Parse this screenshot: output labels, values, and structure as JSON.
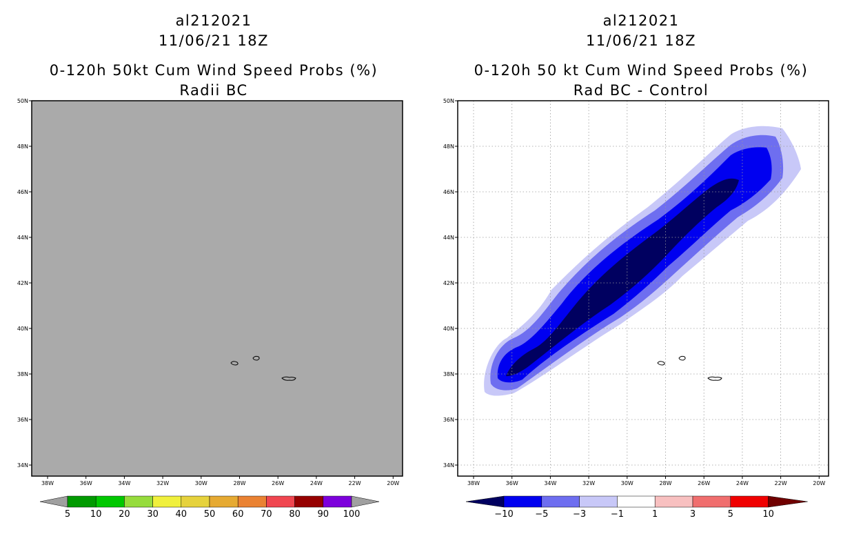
{
  "left_panel": {
    "storm_id": "al212021",
    "datetime": "11/06/21 18Z",
    "product": "0-120h 50kt Cum Wind Speed Probs (%)",
    "subtitle": "Radii BC"
  },
  "right_panel": {
    "storm_id": "al212021",
    "datetime": "11/06/21 18Z",
    "product": "0-120h 50 kt Cum Wind Speed Probs (%)",
    "subtitle": "Rad BC - Control"
  },
  "axes": {
    "lat_labels": [
      "50N",
      "48N",
      "46N",
      "44N",
      "42N",
      "40N",
      "38N",
      "36N",
      "34N"
    ],
    "lon_labels": [
      "38W",
      "36W",
      "34W",
      "32W",
      "30W",
      "28W",
      "26W",
      "24W",
      "22W",
      "20W"
    ]
  },
  "left_colorbar": {
    "labels": [
      "5",
      "10",
      "20",
      "30",
      "40",
      "50",
      "60",
      "70",
      "80",
      "90",
      "100"
    ],
    "colors": [
      "#009a00",
      "#00c800",
      "#96dc3c",
      "#f0f03c",
      "#e6d23c",
      "#e6aa32",
      "#ea8232",
      "#f04650",
      "#960000",
      "#7d00dc"
    ],
    "end_color": "#a0a0a0"
  },
  "right_colorbar": {
    "labels": [
      "-10",
      "-5",
      "-3",
      "-1",
      "1",
      "3",
      "5",
      "10"
    ],
    "colors": [
      "#0000f0",
      "#6e6ef0",
      "#c8c8f8",
      "#ffffff",
      "#f8c0c0",
      "#f06e6e",
      "#f00000"
    ],
    "end_left_color": "#000060",
    "end_right_color": "#700000"
  },
  "map_colors": {
    "left_background": "#aaaaaa",
    "right_background": "#ffffff",
    "diff_light": "#c8c8f8",
    "diff_medium": "#6e6ef0",
    "diff_strong": "#0000f0",
    "diff_darkest": "#000060"
  }
}
